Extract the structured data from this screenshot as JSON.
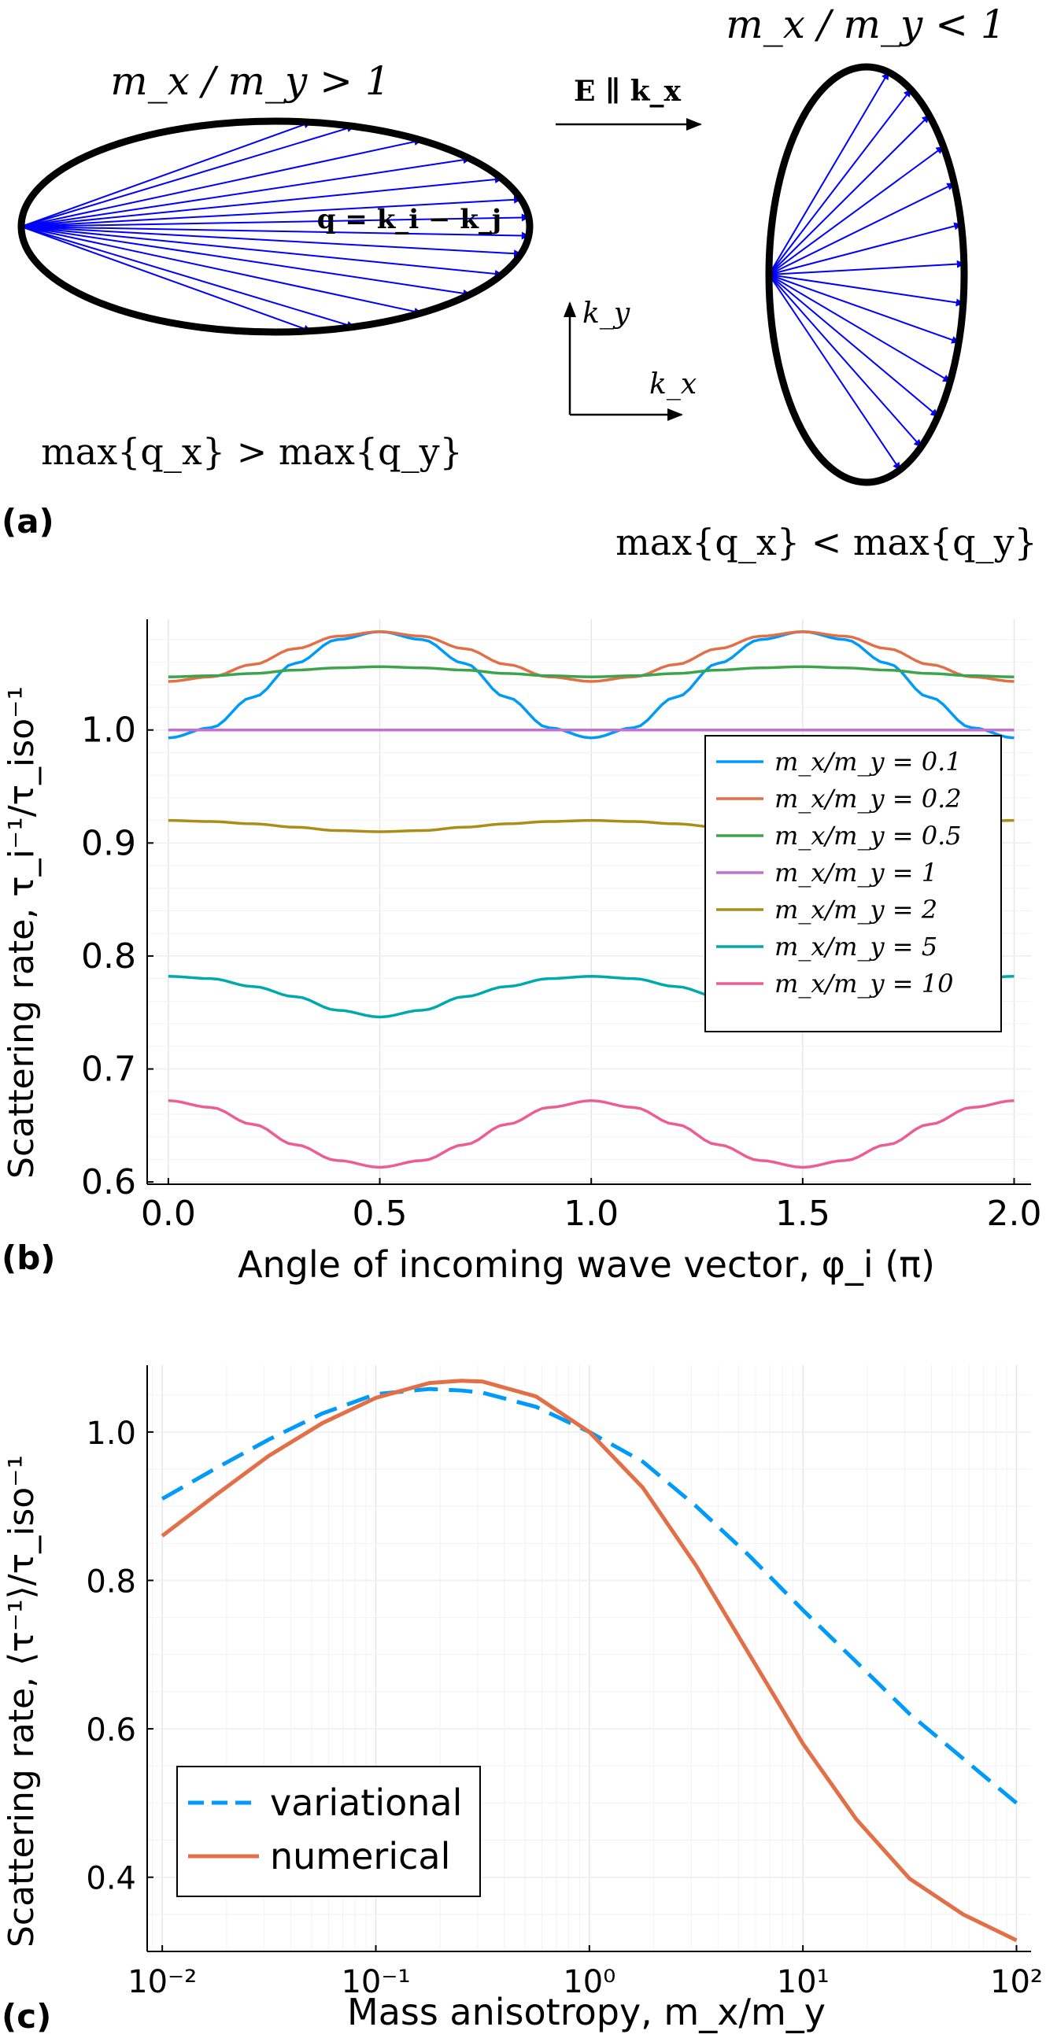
{
  "figure": {
    "panel_a": {
      "label": "(a)",
      "left_ratio": "m_x / m_y > 1",
      "right_ratio": "m_x / m_y < 1",
      "field": "E ∥ k_x",
      "q_def": "q = k_i − k_j",
      "axis_kx": "k_x",
      "axis_ky": "k_y",
      "left_caption": "max{q_x} > max{q_y}",
      "right_caption": "max{q_x} < max{q_y}",
      "arrow_color": "#0000ff",
      "outline_color": "#000000"
    },
    "panel_b": {
      "label": "(b)"
    },
    "panel_c": {
      "label": "(c)"
    }
  },
  "chart_data": [
    {
      "id": "b",
      "type": "line",
      "title": "",
      "xlabel": "Angle of incoming wave vector, φ_i (π)",
      "ylabel": "Scattering rate, τ_i⁻¹/τ_iso⁻¹",
      "xlim": [
        -0.05,
        2.04
      ],
      "ylim": [
        0.598,
        1.098
      ],
      "xticks": [
        0.0,
        0.5,
        1.0,
        1.5,
        2.0
      ],
      "xtick_labels": [
        "0.0",
        "0.5",
        "1.0",
        "1.5",
        "2.0"
      ],
      "yticks": [
        0.6,
        0.7,
        0.8,
        0.9,
        1.0
      ],
      "ytick_labels": [
        "0.6",
        "0.7",
        "0.8",
        "0.9",
        "1.0"
      ],
      "grid": true,
      "legend_position": "right",
      "x": [
        0.0,
        0.1,
        0.2,
        0.3,
        0.4,
        0.5,
        0.6,
        0.7,
        0.8,
        0.9,
        1.0,
        1.1,
        1.2,
        1.3,
        1.4,
        1.5,
        1.6,
        1.7,
        1.8,
        1.9,
        2.0
      ],
      "series": [
        {
          "name": "m_x/m_y = 0.1",
          "color": "#009af9",
          "values": [
            0.993,
            1.002,
            1.029,
            1.059,
            1.08,
            1.087,
            1.08,
            1.059,
            1.029,
            1.002,
            0.993,
            1.002,
            1.029,
            1.059,
            1.08,
            1.087,
            1.08,
            1.059,
            1.029,
            1.002,
            0.993
          ]
        },
        {
          "name": "m_x/m_y = 0.2",
          "color": "#e26f46",
          "values": [
            1.043,
            1.047,
            1.058,
            1.072,
            1.083,
            1.087,
            1.083,
            1.072,
            1.058,
            1.047,
            1.043,
            1.047,
            1.058,
            1.072,
            1.083,
            1.087,
            1.083,
            1.072,
            1.058,
            1.047,
            1.043
          ]
        },
        {
          "name": "m_x/m_y = 0.5",
          "color": "#3da44d",
          "values": [
            1.047,
            1.048,
            1.05,
            1.053,
            1.055,
            1.056,
            1.055,
            1.053,
            1.05,
            1.048,
            1.047,
            1.048,
            1.05,
            1.053,
            1.055,
            1.056,
            1.055,
            1.053,
            1.05,
            1.048,
            1.047
          ]
        },
        {
          "name": "m_x/m_y = 1",
          "color": "#c271d2",
          "values": [
            1.0,
            1.0,
            1.0,
            1.0,
            1.0,
            1.0,
            1.0,
            1.0,
            1.0,
            1.0,
            1.0,
            1.0,
            1.0,
            1.0,
            1.0,
            1.0,
            1.0,
            1.0,
            1.0,
            1.0,
            1.0
          ]
        },
        {
          "name": "m_x/m_y = 2",
          "color": "#ac8d18",
          "values": [
            0.92,
            0.919,
            0.917,
            0.914,
            0.911,
            0.91,
            0.911,
            0.914,
            0.917,
            0.919,
            0.92,
            0.919,
            0.917,
            0.914,
            0.911,
            0.91,
            0.911,
            0.914,
            0.917,
            0.919,
            0.92
          ]
        },
        {
          "name": "m_x/m_y = 5",
          "color": "#00a9ad",
          "values": [
            0.782,
            0.78,
            0.773,
            0.764,
            0.752,
            0.746,
            0.752,
            0.764,
            0.773,
            0.78,
            0.782,
            0.78,
            0.773,
            0.764,
            0.752,
            0.746,
            0.752,
            0.764,
            0.773,
            0.78,
            0.782
          ]
        },
        {
          "name": "m_x/m_y = 10",
          "color": "#ed5d92",
          "values": [
            0.672,
            0.666,
            0.651,
            0.633,
            0.619,
            0.613,
            0.619,
            0.633,
            0.651,
            0.666,
            0.672,
            0.666,
            0.651,
            0.633,
            0.619,
            0.613,
            0.619,
            0.633,
            0.651,
            0.666,
            0.672
          ]
        }
      ]
    },
    {
      "id": "c",
      "type": "line",
      "title": "",
      "xlabel": "Mass anisotropy, m_x/m_y",
      "ylabel": "Scattering rate, ⟨τ⁻¹⟩/τ_iso⁻¹",
      "xscale": "log",
      "xlim": [
        0.0085,
        117
      ],
      "ylim": [
        0.3,
        1.09
      ],
      "xticks": [
        0.01,
        0.1,
        1,
        10,
        100
      ],
      "xtick_labels": [
        "10⁻²",
        "10⁻¹",
        "10⁰",
        "10¹",
        "10²"
      ],
      "yticks": [
        0.4,
        0.6,
        0.8,
        1.0
      ],
      "ytick_labels": [
        "0.4",
        "0.6",
        "0.8",
        "1.0"
      ],
      "grid": true,
      "legend_position": "bottom-left",
      "x": [
        0.01,
        0.0178,
        0.0316,
        0.0562,
        0.1,
        0.178,
        0.25,
        0.316,
        0.562,
        1,
        1.78,
        3.16,
        5.62,
        10,
        17.8,
        31.6,
        56.2,
        100
      ],
      "series": [
        {
          "name": "variational",
          "style": "dashed",
          "color": "#009af9",
          "values": [
            0.91,
            0.951,
            0.99,
            1.025,
            1.051,
            1.058,
            1.056,
            1.053,
            1.034,
            1.0,
            0.96,
            0.9,
            0.833,
            0.76,
            0.69,
            0.62,
            0.56,
            0.5
          ]
        },
        {
          "name": "numerical",
          "style": "solid",
          "color": "#e26f46",
          "values": [
            0.86,
            0.915,
            0.968,
            1.012,
            1.046,
            1.066,
            1.069,
            1.068,
            1.048,
            1.0,
            0.925,
            0.82,
            0.7,
            0.58,
            0.478,
            0.398,
            0.35,
            0.315
          ]
        }
      ]
    }
  ]
}
